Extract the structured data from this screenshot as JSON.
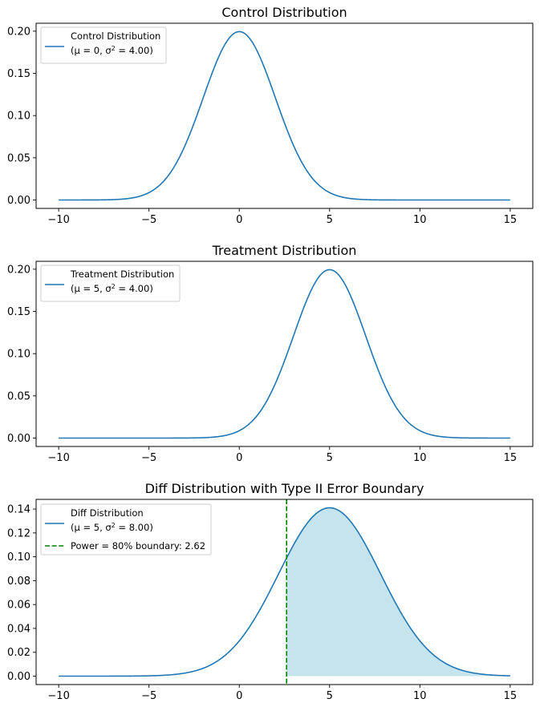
{
  "chart_data": [
    {
      "type": "line",
      "title": "Control Distribution",
      "xlabel": "",
      "ylabel": "",
      "xlim": [
        -11.25,
        16.25
      ],
      "ylim": [
        -0.00997,
        0.2094
      ],
      "x_ticks": [
        -10,
        -5,
        0,
        5,
        10,
        15
      ],
      "x_tick_labels": [
        "−10",
        "−5",
        "0",
        "5",
        "10",
        "15"
      ],
      "y_ticks": [
        0.0,
        0.05,
        0.1,
        0.15,
        0.2
      ],
      "y_tick_labels": [
        "0.00",
        "0.05",
        "0.10",
        "0.15",
        "0.20"
      ],
      "grid": false,
      "legend_placement": "top-left",
      "series": [
        {
          "name": "Control Distribution",
          "legend_line1": "Control Distribution",
          "legend_line2_prefix": "(μ = 0, σ",
          "legend_line2_sup": "2",
          "legend_line2_suffix": " = 4.00)",
          "distribution": "normal",
          "mean": 0,
          "variance": 4.0,
          "x_range": [
            -10,
            15
          ],
          "color": "#1f77b4",
          "style": "solid"
        }
      ]
    },
    {
      "type": "line",
      "title": "Treatment Distribution",
      "xlabel": "",
      "ylabel": "",
      "xlim": [
        -11.25,
        16.25
      ],
      "ylim": [
        -0.00997,
        0.2094
      ],
      "x_ticks": [
        -10,
        -5,
        0,
        5,
        10,
        15
      ],
      "x_tick_labels": [
        "−10",
        "−5",
        "0",
        "5",
        "10",
        "15"
      ],
      "y_ticks": [
        0.0,
        0.05,
        0.1,
        0.15,
        0.2
      ],
      "y_tick_labels": [
        "0.00",
        "0.05",
        "0.10",
        "0.15",
        "0.20"
      ],
      "grid": false,
      "legend_placement": "top-left",
      "series": [
        {
          "name": "Treatment Distribution",
          "legend_line1": "Treatment Distribution",
          "legend_line2_prefix": "(μ = 5, σ",
          "legend_line2_sup": "2",
          "legend_line2_suffix": " = 4.00)",
          "distribution": "normal",
          "mean": 5,
          "variance": 4.0,
          "x_range": [
            -10,
            15
          ],
          "color": "#1f77b4",
          "style": "solid"
        }
      ]
    },
    {
      "type": "area",
      "title": "Diff Distribution with Type II Error Boundary",
      "xlabel": "",
      "ylabel": "",
      "xlim": [
        -11.25,
        16.25
      ],
      "ylim": [
        -0.00705,
        0.1481
      ],
      "x_ticks": [
        -10,
        -5,
        0,
        5,
        10,
        15
      ],
      "x_tick_labels": [
        "−10",
        "−5",
        "0",
        "5",
        "10",
        "15"
      ],
      "y_ticks": [
        0.0,
        0.02,
        0.04,
        0.06,
        0.08,
        0.1,
        0.12,
        0.14
      ],
      "y_tick_labels": [
        "0.00",
        "0.02",
        "0.04",
        "0.06",
        "0.08",
        "0.10",
        "0.12",
        "0.14"
      ],
      "grid": false,
      "legend_placement": "top-left",
      "series": [
        {
          "name": "Diff Distribution",
          "legend_line1": "Diff Distribution",
          "legend_line2_prefix": "(μ = 5, σ",
          "legend_line2_sup": "2",
          "legend_line2_suffix": " = 8.00)",
          "distribution": "normal",
          "mean": 5,
          "variance": 8.0,
          "x_range": [
            -10,
            15
          ],
          "color": "#1f77b4",
          "style": "solid"
        }
      ],
      "vline": {
        "name": "Power = 80% boundary: 2.62",
        "x": 2.62,
        "color": "#008000",
        "style": "dashed"
      },
      "fill": {
        "from_x": 2.62,
        "to_x": 15,
        "color": "#add8e6",
        "alpha": 0.7
      }
    }
  ]
}
